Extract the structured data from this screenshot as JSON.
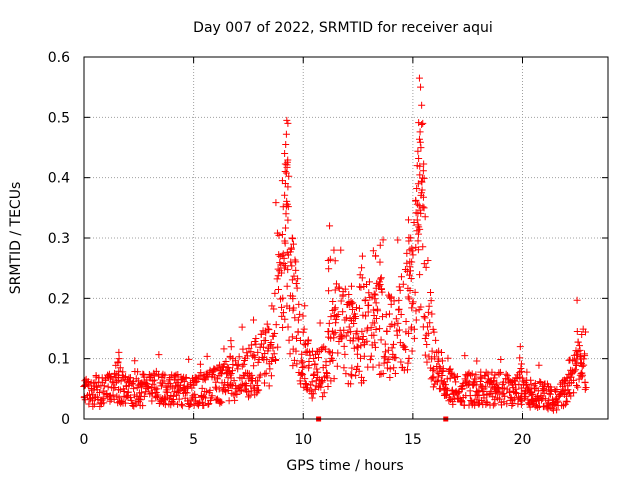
{
  "chart_data": {
    "type": "scatter",
    "title": "Day 007 of 2022, SRMTID for receiver aqui",
    "xlabel": "GPS time / hours",
    "ylabel": "SRMTID / TECUs",
    "xlim": [
      0,
      23.9
    ],
    "ylim": [
      0,
      0.6
    ],
    "xticks": [
      0,
      5,
      10,
      15,
      20
    ],
    "yticks": [
      0,
      0.1,
      0.2,
      0.3,
      0.4,
      0.5,
      0.6
    ],
    "xtick_labels": [
      "0",
      "5",
      "10",
      "15",
      "20"
    ],
    "ytick_labels": [
      "0",
      "0.1",
      "0.2",
      "0.3",
      "0.4",
      "0.5",
      "0.6"
    ],
    "grid": true,
    "marker": "plus",
    "color": "#ff0000",
    "series": [
      {
        "name": "SRMTID",
        "x_start": 0,
        "x_end": 22.9,
        "x_step": 0.025,
        "profile": [
          [
            0.0,
            0.045
          ],
          [
            1.0,
            0.045
          ],
          [
            1.5,
            0.06
          ],
          [
            2.0,
            0.045
          ],
          [
            3.0,
            0.05
          ],
          [
            4.0,
            0.05
          ],
          [
            5.0,
            0.045
          ],
          [
            6.0,
            0.055
          ],
          [
            7.0,
            0.07
          ],
          [
            8.0,
            0.09
          ],
          [
            8.5,
            0.12
          ],
          [
            9.0,
            0.25
          ],
          [
            9.2,
            0.32
          ],
          [
            9.5,
            0.2
          ],
          [
            10.0,
            0.1
          ],
          [
            10.5,
            0.07
          ],
          [
            11.0,
            0.08
          ],
          [
            11.5,
            0.15
          ],
          [
            12.0,
            0.13
          ],
          [
            12.5,
            0.12
          ],
          [
            13.0,
            0.16
          ],
          [
            13.5,
            0.15
          ],
          [
            14.0,
            0.14
          ],
          [
            14.5,
            0.16
          ],
          [
            15.0,
            0.2
          ],
          [
            15.3,
            0.3
          ],
          [
            15.6,
            0.2
          ],
          [
            16.0,
            0.09
          ],
          [
            16.5,
            0.06
          ],
          [
            17.0,
            0.05
          ],
          [
            18.0,
            0.05
          ],
          [
            19.0,
            0.05
          ],
          [
            20.0,
            0.045
          ],
          [
            21.0,
            0.04
          ],
          [
            21.5,
            0.03
          ],
          [
            22.0,
            0.05
          ],
          [
            22.5,
            0.09
          ],
          [
            22.9,
            0.1
          ]
        ],
        "peaks": [
          [
            9.05,
            0.395
          ],
          [
            9.15,
            0.44
          ],
          [
            9.2,
            0.455
          ],
          [
            9.25,
            0.495
          ],
          [
            9.3,
            0.49
          ],
          [
            15.3,
            0.565
          ],
          [
            15.35,
            0.55
          ],
          [
            15.4,
            0.52
          ],
          [
            15.45,
            0.49
          ],
          [
            15.2,
            0.42
          ],
          [
            15.25,
            0.39
          ],
          [
            11.2,
            0.32
          ],
          [
            11.4,
            0.28
          ],
          [
            12.7,
            0.27
          ],
          [
            13.3,
            0.27
          ],
          [
            13.5,
            0.26
          ],
          [
            12.2,
            0.22
          ],
          [
            14.8,
            0.33
          ],
          [
            14.9,
            0.3
          ],
          [
            9.5,
            0.3
          ],
          [
            22.5,
            0.145
          ],
          [
            22.7,
            0.14
          ],
          [
            6.7,
            0.13
          ],
          [
            1.6,
            0.1
          ],
          [
            19.9,
            0.12
          ]
        ]
      }
    ],
    "zero_markers": [
      10.7,
      16.5
    ]
  }
}
